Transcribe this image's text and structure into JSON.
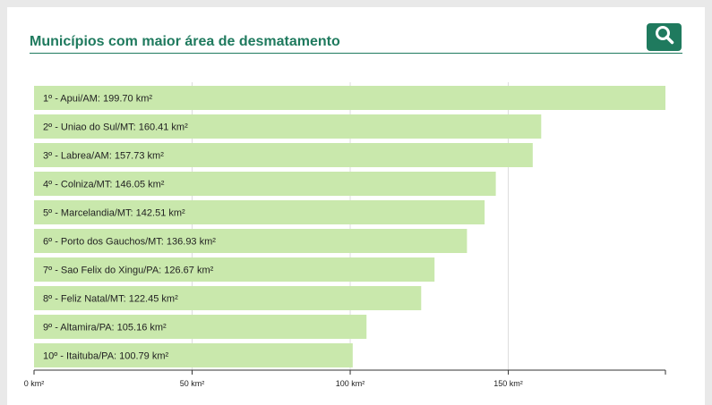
{
  "header": {
    "title": "Municípios com maior área de desmatamento",
    "search_icon": "search-icon"
  },
  "colors": {
    "accent": "#1f7a5e",
    "bar": "#c9e8ac",
    "grid": "#dddddd",
    "axis": "#333333"
  },
  "chart_data": {
    "type": "bar",
    "orientation": "horizontal",
    "title": "Municípios com maior área de desmatamento",
    "categories": [
      "1º - Apui/AM",
      "2º - Uniao do Sul/MT",
      "3º - Labrea/AM",
      "4º - Colniza/MT",
      "5º - Marcelandia/MT",
      "6º - Porto dos Gauchos/MT",
      "7º - Sao Felix do Xingu/PA",
      "8º - Feliz Natal/MT",
      "9º - Altamira/PA",
      "10º - Itaituba/PA"
    ],
    "values": [
      199.7,
      160.41,
      157.73,
      146.05,
      142.51,
      136.93,
      126.67,
      122.45,
      105.16,
      100.79
    ],
    "labels": [
      "1º - Apui/AM: 199.70 km²",
      "2º - Uniao do Sul/MT: 160.41 km²",
      "3º - Labrea/AM: 157.73 km²",
      "4º - Colniza/MT: 146.05 km²",
      "5º - Marcelandia/MT: 142.51 km²",
      "6º - Porto dos Gauchos/MT: 136.93 km²",
      "7º - Sao Felix do Xingu/PA: 126.67 km²",
      "8º - Feliz Natal/MT: 122.45 km²",
      "9º - Altamira/PA: 105.16 km²",
      "10º - Itaituba/PA: 100.79 km²"
    ],
    "xlim": [
      0,
      199.7
    ],
    "xticks": [
      0,
      50,
      100,
      150
    ],
    "xtick_labels": [
      "0 km²",
      "50 km²",
      "100 km²",
      "150 km²"
    ],
    "grid": true,
    "xlabel": "",
    "ylabel": ""
  }
}
